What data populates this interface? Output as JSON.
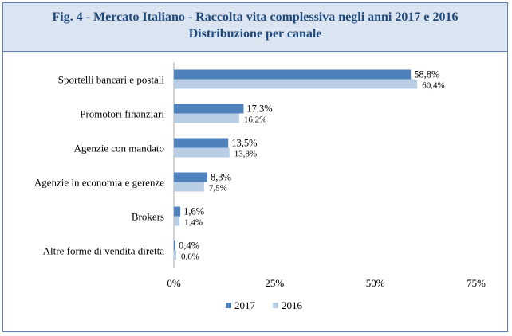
{
  "figure": {
    "title_line1": "Fig. 4 - Mercato Italiano - Raccolta vita complessiva negli anni 2017 e 2016",
    "title_line2": "Distribuzione per canale"
  },
  "colors": {
    "series_2017": "#4f81bd",
    "series_2016": "#b9cde5",
    "title": "#1f497d",
    "header_bg": "#dbe5f1",
    "border": "#5a7fb0"
  },
  "chart_data": {
    "type": "bar",
    "orientation": "horizontal",
    "categories": [
      "Sportelli bancari e postali",
      "Promotori finanziari",
      "Agenzie con mandato",
      "Agenzie in economia e gerenze",
      "Brokers",
      "Altre forme di vendita diretta"
    ],
    "series": [
      {
        "name": "2017",
        "values": [
          58.8,
          17.3,
          13.5,
          8.3,
          1.6,
          0.4
        ],
        "labels": [
          "58,8%",
          "17,3%",
          "13,5%",
          "8,3%",
          "1,6%",
          "0,4%"
        ]
      },
      {
        "name": "2016",
        "values": [
          60.4,
          16.2,
          13.8,
          7.5,
          1.4,
          0.6
        ],
        "labels": [
          "60,4%",
          "16,2%",
          "13,8%",
          "7,5%",
          "1,4%",
          "0,6%"
        ]
      }
    ],
    "xlim": [
      0,
      75
    ],
    "xticks": [
      0,
      25,
      50,
      75
    ],
    "xtick_labels": [
      "0%",
      "25%",
      "50%",
      "75%"
    ],
    "grid": false,
    "legend_position": "bottom"
  }
}
